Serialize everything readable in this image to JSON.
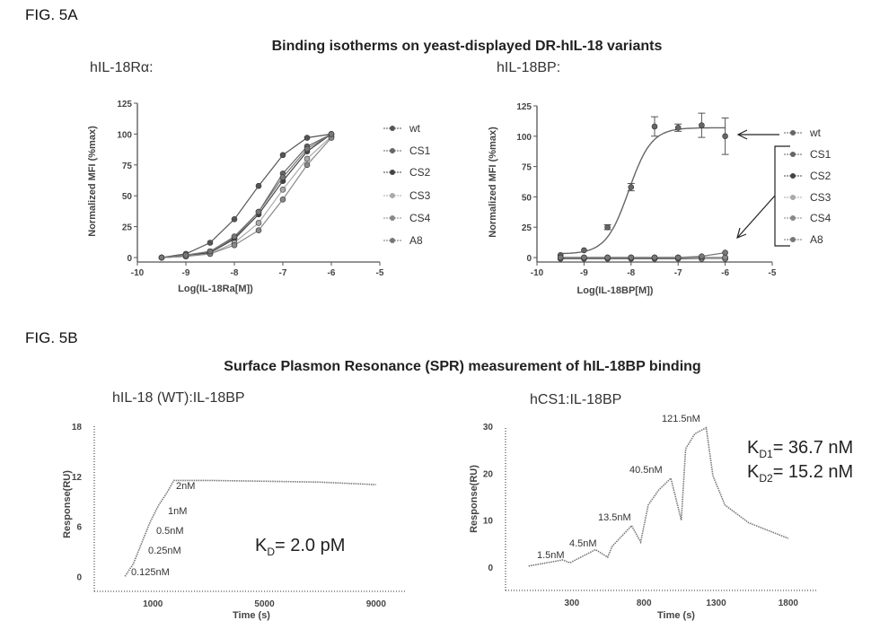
{
  "fig_a_label": "FIG. 5A",
  "fig_a_title": "Binding isotherms on yeast-displayed DR-hIL-18 variants",
  "fig_b_label": "FIG. 5B",
  "fig_b_title": "Surface Plasmon Resonance (SPR) measurement of hIL-18BP binding",
  "chart_data": [
    {
      "type": "line",
      "title": "hIL-18Rα:",
      "xlabel": "Log(IL-18Ra[M])",
      "ylabel": "Normalized MFI (%max)",
      "xlim": [
        -10,
        -5
      ],
      "ylim": [
        0,
        125
      ],
      "xticks": [
        -10,
        -9,
        -8,
        -7,
        -6,
        -5
      ],
      "yticks": [
        0,
        25,
        50,
        75,
        100,
        125
      ],
      "legend": "right",
      "x": [
        -9.5,
        -9,
        -8.5,
        -8,
        -7.5,
        -7,
        -6.5,
        -6
      ],
      "series": [
        {
          "name": "wt",
          "values": [
            0,
            3,
            12,
            31,
            58,
            83,
            97,
            100
          ],
          "color": "#555555"
        },
        {
          "name": "CS1",
          "values": [
            0,
            1,
            5,
            16,
            37,
            68,
            90,
            100
          ],
          "color": "#666666"
        },
        {
          "name": "CS2",
          "values": [
            0,
            1,
            4,
            15,
            35,
            62,
            86,
            100
          ],
          "color": "#444444"
        },
        {
          "name": "CS3",
          "values": [
            0,
            1,
            3,
            12,
            28,
            55,
            80,
            98
          ],
          "color": "#aaaaaa"
        },
        {
          "name": "CS4",
          "values": [
            0,
            1,
            3,
            10,
            22,
            47,
            75,
            97
          ],
          "color": "#888888"
        },
        {
          "name": "A8",
          "values": [
            0,
            2,
            5,
            17,
            37,
            65,
            88,
            100
          ],
          "color": "#777777"
        }
      ]
    },
    {
      "type": "line",
      "title": "hIL-18BP:",
      "xlabel": "Log(IL-18BP[M])",
      "ylabel": "Normalized MFI (%max)",
      "xlim": [
        -10,
        -5
      ],
      "ylim": [
        0,
        125
      ],
      "xticks": [
        -10,
        -9,
        -8,
        -7,
        -6,
        -5
      ],
      "yticks": [
        0,
        25,
        50,
        75,
        100,
        125
      ],
      "legend": "right",
      "x": [
        -9.5,
        -9,
        -8.5,
        -8,
        -7.5,
        -7,
        -6.5,
        -6
      ],
      "series": [
        {
          "name": "wt",
          "values": [
            2,
            6,
            25,
            58,
            108,
            107,
            109,
            100
          ],
          "error": [
            0,
            0,
            2,
            3,
            8,
            3,
            10,
            15
          ],
          "color": "#666666",
          "fit": "sigmoid"
        },
        {
          "name": "CS1",
          "values": [
            -1,
            -1,
            -1,
            -1,
            -1,
            -1,
            -1,
            -1
          ],
          "color": "#666666"
        },
        {
          "name": "CS2",
          "values": [
            0,
            0,
            0,
            0,
            0,
            0,
            0,
            0
          ],
          "color": "#444444"
        },
        {
          "name": "CS3",
          "values": [
            0,
            0,
            0,
            0,
            0,
            0,
            -1,
            -1
          ],
          "color": "#aaaaaa"
        },
        {
          "name": "CS4",
          "values": [
            0,
            0,
            0,
            0,
            0,
            0,
            0,
            0
          ],
          "color": "#888888"
        },
        {
          "name": "A8",
          "values": [
            0,
            0,
            0,
            0,
            0,
            0,
            1,
            4
          ],
          "color": "#777777"
        }
      ]
    },
    {
      "type": "line",
      "title": "hIL-18 (WT):IL-18BP",
      "xlabel": "Time (s)",
      "ylabel": "Response(RU)",
      "xlim": [
        -1100,
        10100
      ],
      "ylim": [
        -1.8,
        18
      ],
      "xticks": [
        1000,
        5000,
        9000
      ],
      "yticks": [
        0,
        6,
        12,
        18
      ],
      "x": [
        0,
        300,
        600,
        900,
        1200,
        1500,
        1750,
        3000,
        5000,
        7000,
        9000
      ],
      "series": [
        {
          "values": [
            0,
            1.5,
            4,
            6.5,
            8.5,
            10,
            11.5,
            11.5,
            11.4,
            11.3,
            11.0
          ],
          "color": "#777777"
        }
      ],
      "annotations": [
        "2nM",
        "1nM",
        "0.5nM",
        "0.25nM",
        "0.125nM"
      ],
      "kd_text": [
        "K",
        "D",
        "= 2.0 pM"
      ]
    },
    {
      "type": "line",
      "title": "hCS1:IL-18BP",
      "xlabel": "Time (s)",
      "ylabel": "Response(RU)",
      "xlim": [
        -160,
        2000
      ],
      "ylim": [
        -5,
        30
      ],
      "xticks": [
        300,
        800,
        1300,
        1800
      ],
      "yticks": [
        0,
        10,
        20,
        30
      ],
      "x": [
        0,
        236,
        287,
        464,
        548,
        579,
        714,
        777,
        829,
        902,
        986,
        1058,
        1089,
        1152,
        1231,
        1277,
        1361,
        1527,
        1800
      ],
      "series": [
        {
          "values": [
            0.2,
            1.5,
            0.9,
            3.7,
            2.1,
            4.4,
            8.8,
            5.3,
            13.2,
            16.4,
            18.9,
            10,
            25.2,
            28.4,
            29.7,
            19.5,
            13.2,
            9.4,
            6.1
          ],
          "color": "#777777"
        }
      ],
      "annotations": [
        "1.5nM",
        "4.5nM",
        "13.5nM",
        "40.5nM",
        "121.5nM"
      ],
      "kd_text": [
        [
          "K",
          "D1",
          "= 36.7 nM"
        ],
        [
          "K",
          "D2",
          "= 15.2 nM"
        ]
      ]
    }
  ]
}
